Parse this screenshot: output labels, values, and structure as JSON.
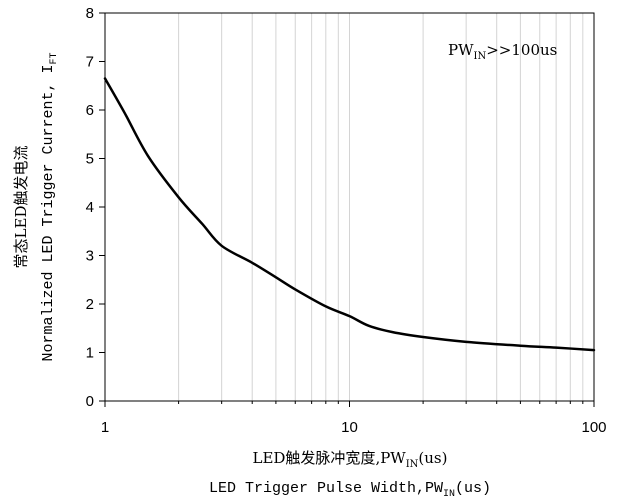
{
  "chart_data": {
    "type": "line",
    "title": "",
    "annotation": {
      "main": "PW",
      "sub": "IN",
      "tail": ">>100us"
    },
    "xlabel": {
      "line1": {
        "main": "LED触发脉冲宽度,PW",
        "sub": "IN",
        "tail": "(us)"
      },
      "line2": {
        "main": "LED Trigger Pulse Width,PW",
        "sub": "IN",
        "tail": "(us)"
      }
    },
    "ylabel": {
      "line1": "常态LED触发电流",
      "line2": {
        "main": "Normalized LED Trigger Current, I",
        "sub": "FT"
      }
    },
    "x_scale": "log",
    "xlim": [
      1,
      100
    ],
    "ylim": [
      0,
      8
    ],
    "x_ticks": [
      1,
      10,
      100
    ],
    "y_ticks": [
      0,
      1,
      2,
      3,
      4,
      5,
      6,
      7,
      8
    ],
    "grid": {
      "x_minor_log": true,
      "y": false
    },
    "series": [
      {
        "color": "#000000",
        "x": [
          1,
          1.2,
          1.5,
          2,
          2.5,
          3,
          4,
          5,
          6,
          8,
          10,
          12,
          15,
          20,
          30,
          50,
          70,
          100
        ],
        "y": [
          6.65,
          5.95,
          5.05,
          4.2,
          3.65,
          3.2,
          2.85,
          2.55,
          2.3,
          1.95,
          1.75,
          1.55,
          1.42,
          1.32,
          1.22,
          1.14,
          1.1,
          1.05
        ]
      }
    ]
  }
}
